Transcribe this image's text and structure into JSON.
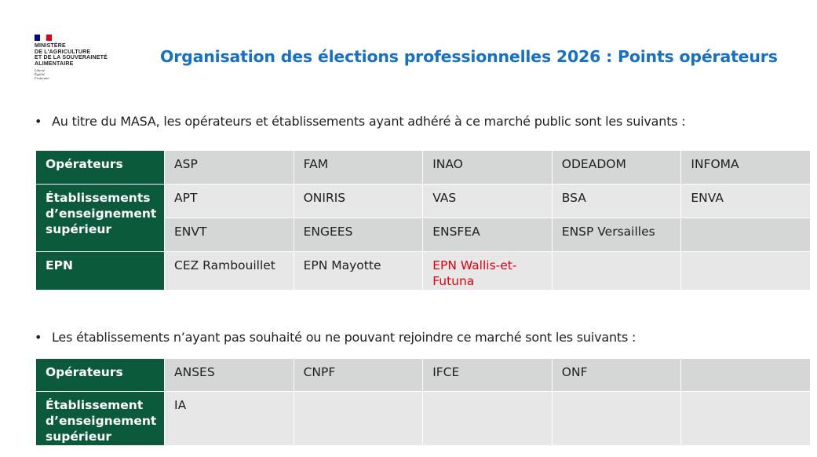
{
  "logo": {
    "lines": [
      "MINISTÈRE",
      "DE L'AGRICULTURE",
      "ET DE LA SOUVERAINETÉ",
      "ALIMENTAIRE"
    ],
    "motto": [
      "Liberté",
      "Égalité",
      "Fraternité"
    ]
  },
  "header": {
    "title": "Organisation des élections professionnelles 2026 : Points opérateurs"
  },
  "sections": [
    {
      "bullet": "Au titre du MASA, les opérateurs et établissements ayant adhéré à ce marché public sont les suivants :",
      "groups": [
        {
          "header": "Opérateurs",
          "rows": [
            [
              {
                "text": "ASP"
              },
              {
                "text": "FAM"
              },
              {
                "text": "INAO"
              },
              {
                "text": "ODEADOM"
              },
              {
                "text": "INFOMA"
              }
            ]
          ]
        },
        {
          "header": "Établissements d’enseignement supérieur",
          "rows": [
            [
              {
                "text": "APT"
              },
              {
                "text": "ONIRIS"
              },
              {
                "text": "VAS"
              },
              {
                "text": "BSA"
              },
              {
                "text": "ENVA"
              }
            ],
            [
              {
                "text": "ENVT"
              },
              {
                "text": "ENGEES"
              },
              {
                "text": "ENSFEA"
              },
              {
                "text": "ENSP Versailles"
              }
            ]
          ]
        },
        {
          "header": "EPN",
          "rows": [
            [
              {
                "text": "CEZ Rambouillet"
              },
              {
                "text": "EPN Mayotte"
              },
              {
                "text": "EPN Wallis-et-Futuna",
                "color": "#e1000f"
              }
            ]
          ]
        }
      ]
    },
    {
      "bullet": "Les établissements n’ayant pas souhaité ou ne pouvant rejoindre ce marché sont les suivants :",
      "groups": [
        {
          "header": "Opérateurs",
          "rows": [
            [
              {
                "text": "ANSES"
              },
              {
                "text": "CNPF"
              },
              {
                "text": "IFCE"
              },
              {
                "text": "ONF"
              }
            ]
          ]
        },
        {
          "header": "Établissement d’enseignement supérieur",
          "rows": [
            [
              {
                "text": "IA"
              }
            ]
          ]
        }
      ]
    }
  ]
}
